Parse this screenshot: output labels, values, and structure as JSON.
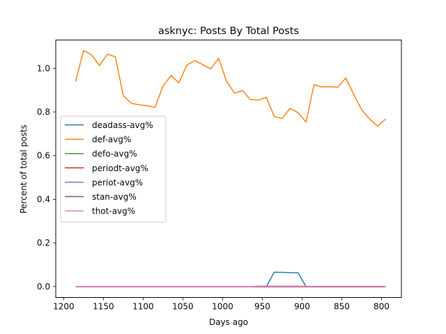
{
  "chart_data": {
    "type": "line",
    "title": "asknyc: Posts By Total Posts",
    "xlabel": "Days ago",
    "ylabel": "Percent of total posts",
    "x_reversed": true,
    "xlim": [
      1210,
      775
    ],
    "ylim": [
      -0.05,
      1.13
    ],
    "xticks": [
      1200,
      1150,
      1100,
      1050,
      1000,
      950,
      900,
      850,
      800
    ],
    "yticks": [
      0.0,
      0.2,
      0.4,
      0.6,
      0.8,
      1.0
    ],
    "ytick_labels": [
      "0.0",
      "0.2",
      "0.4",
      "0.6",
      "0.8",
      "1.0"
    ],
    "grid": false,
    "legend_position": "center-left",
    "x": [
      1185,
      1175,
      1165,
      1155,
      1145,
      1135,
      1125,
      1115,
      1105,
      1095,
      1085,
      1075,
      1065,
      1055,
      1045,
      1035,
      1025,
      1015,
      1005,
      995,
      985,
      975,
      965,
      955,
      945,
      935,
      925,
      915,
      905,
      895,
      885,
      875,
      865,
      855,
      845,
      835,
      825,
      815,
      805,
      795
    ],
    "series": [
      {
        "name": "deadass-avg%",
        "color": "#1f77b4",
        "values": [
          0,
          0,
          0,
          0,
          0,
          0,
          0,
          0,
          0,
          0,
          0,
          0,
          0,
          0,
          0,
          0,
          0,
          0,
          0,
          0,
          0,
          0,
          0,
          0,
          0,
          0.066,
          0.065,
          0.064,
          0.063,
          0,
          0,
          0,
          0,
          0,
          0,
          0,
          0,
          0,
          0,
          0
        ]
      },
      {
        "name": "def-avg%",
        "color": "#ff7f0e",
        "values": [
          0.94,
          1.082,
          1.062,
          1.013,
          1.065,
          1.053,
          0.875,
          0.84,
          0.833,
          0.829,
          0.822,
          0.919,
          0.967,
          0.934,
          1.015,
          1.036,
          1.017,
          0.997,
          1.046,
          0.94,
          0.887,
          0.898,
          0.857,
          0.855,
          0.867,
          0.779,
          0.771,
          0.817,
          0.797,
          0.754,
          0.925,
          0.915,
          0.916,
          0.914,
          0.956,
          0.88,
          0.81,
          0.768,
          0.735,
          0.768
        ]
      },
      {
        "name": "defo-avg%",
        "color": "#2ca02c",
        "values": [
          0,
          0,
          0,
          0,
          0,
          0,
          0,
          0,
          0,
          0,
          0,
          0,
          0,
          0,
          0,
          0,
          0,
          0,
          0,
          0,
          0,
          0,
          0,
          0,
          0,
          0,
          0,
          0,
          0,
          0,
          0,
          0,
          0,
          0,
          0,
          0,
          0,
          0,
          0,
          0
        ]
      },
      {
        "name": "periodt-avg%",
        "color": "#d62728",
        "values": [
          0,
          0,
          0,
          0,
          0,
          0,
          0,
          0,
          0,
          0,
          0,
          0,
          0,
          0,
          0,
          0,
          0,
          0,
          0,
          0,
          0,
          0,
          0,
          0,
          0,
          0,
          0,
          0,
          0,
          0,
          0,
          0,
          0,
          0,
          0,
          0,
          0,
          0,
          0,
          0
        ]
      },
      {
        "name": "periot-avg%",
        "color": "#9467bd",
        "values": [
          0,
          0,
          0,
          0,
          0,
          0,
          0,
          0,
          0,
          0,
          0,
          0,
          0,
          0,
          0,
          0,
          0,
          0,
          0,
          0,
          0,
          0,
          0,
          0,
          0,
          0,
          0,
          0,
          0,
          0,
          0,
          0,
          0,
          0,
          0,
          0,
          0,
          0,
          0,
          0
        ]
      },
      {
        "name": "stan-avg%",
        "color": "#8c564b",
        "values": [
          0,
          0,
          0,
          0,
          0,
          0,
          0,
          0,
          0,
          0,
          0,
          0,
          0,
          0,
          0,
          0,
          0,
          0,
          0,
          0,
          0,
          0,
          0,
          0,
          0,
          0,
          0,
          0,
          0,
          0,
          0,
          0,
          0,
          0,
          0,
          0,
          0,
          0,
          0,
          0
        ]
      },
      {
        "name": "thot-avg%",
        "color": "#e377c2",
        "values": [
          0,
          0,
          0,
          0,
          0,
          0,
          0,
          0,
          0,
          0,
          0,
          0,
          0,
          0,
          0,
          0,
          0,
          0,
          0,
          0,
          0,
          0,
          0,
          0.002,
          0.002,
          0.002,
          0.002,
          0.002,
          0.002,
          0.001,
          0.001,
          0.001,
          0.001,
          0.001,
          0.001,
          0.001,
          0.001,
          0.001,
          0.001,
          0.001
        ]
      }
    ]
  }
}
